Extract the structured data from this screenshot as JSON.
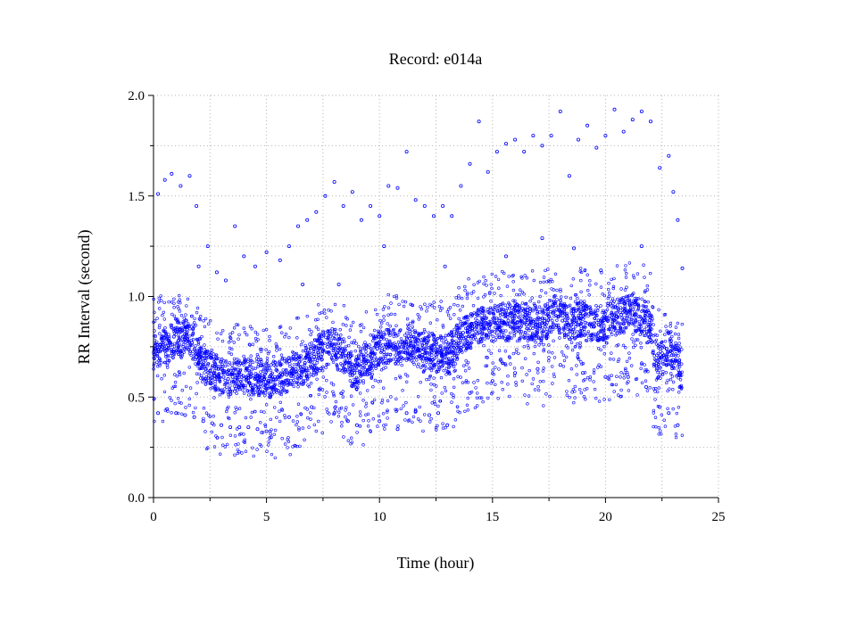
{
  "colors": {
    "background": "#ffffff",
    "marker": "#0000ff",
    "grid": "#b4b4b4",
    "axis": "#000000"
  },
  "chart_data": {
    "type": "scatter",
    "title": "Record:  e014a",
    "xlabel": "Time (hour)",
    "ylabel": "RR Interval (second)",
    "xlim": [
      0,
      25
    ],
    "ylim": [
      0,
      2
    ],
    "x_ticks": [
      0,
      5,
      10,
      15,
      20,
      25
    ],
    "x_tick_labels": [
      "0",
      "5",
      "10",
      "15",
      "20",
      "25"
    ],
    "x_minor_ticks": [
      2.5,
      7.5,
      12.5,
      17.5,
      22.5
    ],
    "y_ticks": [
      0,
      0.5,
      1,
      1.5,
      2
    ],
    "y_tick_labels": [
      "0.0",
      "0.5",
      "1.0",
      "1.5",
      "2.0"
    ],
    "y_minor_ticks": [
      0.25,
      0.75,
      1.25,
      1.75
    ],
    "grid": true,
    "grid_style": "dotted",
    "marker": "open-circle",
    "record_span_hours": [
      0,
      23.4
    ],
    "series": [
      {
        "description": "dense main band",
        "points": [
          [
            0.1,
            0.74
          ],
          [
            0.3,
            0.76
          ],
          [
            0.5,
            0.73
          ],
          [
            0.7,
            0.77
          ],
          [
            0.9,
            0.8
          ],
          [
            1.1,
            0.78
          ],
          [
            1.3,
            0.8
          ],
          [
            1.5,
            0.79
          ],
          [
            1.7,
            0.77
          ],
          [
            1.9,
            0.7
          ],
          [
            2.1,
            0.66
          ],
          [
            2.3,
            0.64
          ],
          [
            2.5,
            0.63
          ],
          [
            2.7,
            0.62
          ],
          [
            2.9,
            0.6
          ],
          [
            3.1,
            0.6
          ],
          [
            3.3,
            0.59
          ],
          [
            3.5,
            0.6
          ],
          [
            3.7,
            0.61
          ],
          [
            3.9,
            0.6
          ],
          [
            4.1,
            0.6
          ],
          [
            4.3,
            0.6
          ],
          [
            4.5,
            0.59
          ],
          [
            4.7,
            0.6
          ],
          [
            4.9,
            0.59
          ],
          [
            5.1,
            0.58
          ],
          [
            5.3,
            0.59
          ],
          [
            5.5,
            0.6
          ],
          [
            5.7,
            0.61
          ],
          [
            5.9,
            0.61
          ],
          [
            6.1,
            0.63
          ],
          [
            6.3,
            0.64
          ],
          [
            6.5,
            0.65
          ],
          [
            6.7,
            0.67
          ],
          [
            6.9,
            0.69
          ],
          [
            7.1,
            0.7
          ],
          [
            7.3,
            0.72
          ],
          [
            7.5,
            0.73
          ],
          [
            7.7,
            0.75
          ],
          [
            7.9,
            0.76
          ],
          [
            8.1,
            0.72
          ],
          [
            8.3,
            0.7
          ],
          [
            8.5,
            0.67
          ],
          [
            8.7,
            0.64
          ],
          [
            8.9,
            0.62
          ],
          [
            9.1,
            0.66
          ],
          [
            9.3,
            0.7
          ],
          [
            9.5,
            0.68
          ],
          [
            9.7,
            0.72
          ],
          [
            9.9,
            0.74
          ],
          [
            10.1,
            0.73
          ],
          [
            10.3,
            0.75
          ],
          [
            10.5,
            0.76
          ],
          [
            10.7,
            0.75
          ],
          [
            10.9,
            0.76
          ],
          [
            11.1,
            0.77
          ],
          [
            11.3,
            0.76
          ],
          [
            11.5,
            0.74
          ],
          [
            11.7,
            0.73
          ],
          [
            11.9,
            0.71
          ],
          [
            12.1,
            0.72
          ],
          [
            12.3,
            0.73
          ],
          [
            12.5,
            0.71
          ],
          [
            12.7,
            0.72
          ],
          [
            12.9,
            0.7
          ],
          [
            13.1,
            0.74
          ],
          [
            13.3,
            0.77
          ],
          [
            13.5,
            0.8
          ],
          [
            13.7,
            0.82
          ],
          [
            13.9,
            0.83
          ],
          [
            14.1,
            0.84
          ],
          [
            14.3,
            0.85
          ],
          [
            14.5,
            0.86
          ],
          [
            14.7,
            0.87
          ],
          [
            14.9,
            0.86
          ],
          [
            15.1,
            0.87
          ],
          [
            15.3,
            0.88
          ],
          [
            15.5,
            0.87
          ],
          [
            15.7,
            0.88
          ],
          [
            15.9,
            0.89
          ],
          [
            16.1,
            0.87
          ],
          [
            16.3,
            0.88
          ],
          [
            16.5,
            0.86
          ],
          [
            16.7,
            0.87
          ],
          [
            16.9,
            0.86
          ],
          [
            17.1,
            0.85
          ],
          [
            17.3,
            0.88
          ],
          [
            17.5,
            0.9
          ],
          [
            17.7,
            0.92
          ],
          [
            17.9,
            0.9
          ],
          [
            18.1,
            0.88
          ],
          [
            18.3,
            0.87
          ],
          [
            18.5,
            0.86
          ],
          [
            18.7,
            0.88
          ],
          [
            18.9,
            0.89
          ],
          [
            19.1,
            0.87
          ],
          [
            19.3,
            0.86
          ],
          [
            19.5,
            0.85
          ],
          [
            19.7,
            0.86
          ],
          [
            19.9,
            0.84
          ],
          [
            20.1,
            0.88
          ],
          [
            20.3,
            0.91
          ],
          [
            20.5,
            0.9
          ],
          [
            20.7,
            0.91
          ],
          [
            20.9,
            0.92
          ],
          [
            21.1,
            0.93
          ],
          [
            21.3,
            0.91
          ],
          [
            21.5,
            0.9
          ],
          [
            21.7,
            0.89
          ],
          [
            21.9,
            0.86
          ],
          [
            22.1,
            0.72
          ],
          [
            22.3,
            0.68
          ],
          [
            22.5,
            0.7
          ],
          [
            22.7,
            0.74
          ],
          [
            22.9,
            0.73
          ],
          [
            23.1,
            0.68
          ],
          [
            23.3,
            0.62
          ]
        ]
      },
      {
        "description": "lower cluster",
        "points": [
          [
            0.2,
            0.42
          ],
          [
            0.6,
            0.44
          ],
          [
            1.0,
            0.42
          ],
          [
            1.4,
            0.41
          ],
          [
            1.8,
            0.4
          ],
          [
            2.2,
            0.38
          ],
          [
            2.6,
            0.37
          ],
          [
            3.0,
            0.36
          ],
          [
            3.4,
            0.35
          ],
          [
            3.8,
            0.35
          ],
          [
            4.2,
            0.35
          ],
          [
            4.6,
            0.34
          ],
          [
            5.0,
            0.33
          ],
          [
            5.2,
            0.3
          ],
          [
            6.0,
            0.4
          ],
          [
            7.0,
            0.45
          ],
          [
            8.0,
            0.42
          ],
          [
            8.6,
            0.38
          ],
          [
            9.0,
            0.36
          ],
          [
            10.0,
            0.38
          ],
          [
            10.8,
            0.34
          ],
          [
            11.2,
            0.42
          ],
          [
            11.6,
            0.43
          ],
          [
            12.2,
            0.41
          ],
          [
            12.6,
            0.42
          ],
          [
            13.0,
            0.36
          ],
          [
            14.0,
            0.52
          ],
          [
            15.0,
            0.58
          ],
          [
            16.0,
            0.62
          ],
          [
            17.0,
            0.64
          ],
          [
            18.0,
            0.66
          ],
          [
            19.0,
            0.62
          ],
          [
            20.0,
            0.6
          ],
          [
            21.0,
            0.6
          ],
          [
            21.8,
            0.55
          ],
          [
            22.4,
            0.45
          ],
          [
            22.8,
            0.42
          ],
          [
            23.2,
            0.36
          ]
        ]
      },
      {
        "description": "upper outliers",
        "points": [
          [
            0.2,
            1.51
          ],
          [
            0.5,
            1.58
          ],
          [
            0.8,
            1.61
          ],
          [
            1.2,
            1.55
          ],
          [
            1.6,
            1.6
          ],
          [
            1.9,
            1.45
          ],
          [
            2.4,
            1.25
          ],
          [
            2.8,
            1.12
          ],
          [
            3.2,
            1.08
          ],
          [
            3.6,
            1.35
          ],
          [
            4.0,
            1.2
          ],
          [
            4.5,
            1.15
          ],
          [
            5.0,
            1.22
          ],
          [
            5.6,
            1.18
          ],
          [
            6.0,
            1.25
          ],
          [
            6.4,
            1.35
          ],
          [
            6.8,
            1.38
          ],
          [
            7.2,
            1.42
          ],
          [
            7.6,
            1.5
          ],
          [
            8.0,
            1.57
          ],
          [
            8.4,
            1.45
          ],
          [
            8.8,
            1.52
          ],
          [
            9.2,
            1.38
          ],
          [
            9.6,
            1.45
          ],
          [
            10.0,
            1.4
          ],
          [
            10.4,
            1.55
          ],
          [
            10.8,
            1.54
          ],
          [
            11.2,
            1.72
          ],
          [
            11.6,
            1.48
          ],
          [
            12.0,
            1.45
          ],
          [
            12.4,
            1.4
          ],
          [
            12.8,
            1.45
          ],
          [
            13.2,
            1.4
          ],
          [
            13.6,
            1.55
          ],
          [
            14.0,
            1.66
          ],
          [
            14.4,
            1.87
          ],
          [
            14.8,
            1.62
          ],
          [
            15.2,
            1.72
          ],
          [
            15.6,
            1.76
          ],
          [
            16.0,
            1.78
          ],
          [
            16.4,
            1.72
          ],
          [
            16.8,
            1.8
          ],
          [
            17.2,
            1.75
          ],
          [
            17.6,
            1.8
          ],
          [
            18.0,
            1.92
          ],
          [
            18.4,
            1.6
          ],
          [
            18.8,
            1.78
          ],
          [
            19.2,
            1.85
          ],
          [
            19.6,
            1.74
          ],
          [
            20.0,
            1.8
          ],
          [
            20.4,
            1.93
          ],
          [
            20.8,
            1.82
          ],
          [
            21.2,
            1.88
          ],
          [
            21.6,
            1.92
          ],
          [
            22.0,
            1.87
          ],
          [
            22.4,
            1.64
          ],
          [
            22.8,
            1.7
          ],
          [
            23.0,
            1.52
          ],
          [
            23.2,
            1.38
          ],
          [
            23.4,
            1.14
          ],
          [
            2.0,
            1.15
          ],
          [
            6.6,
            1.06
          ],
          [
            8.2,
            1.06
          ],
          [
            10.2,
            1.25
          ],
          [
            12.9,
            1.15
          ],
          [
            15.6,
            1.2
          ],
          [
            17.2,
            1.29
          ],
          [
            18.6,
            1.24
          ],
          [
            19.8,
            1.13
          ],
          [
            21.6,
            1.25
          ]
        ]
      }
    ]
  }
}
